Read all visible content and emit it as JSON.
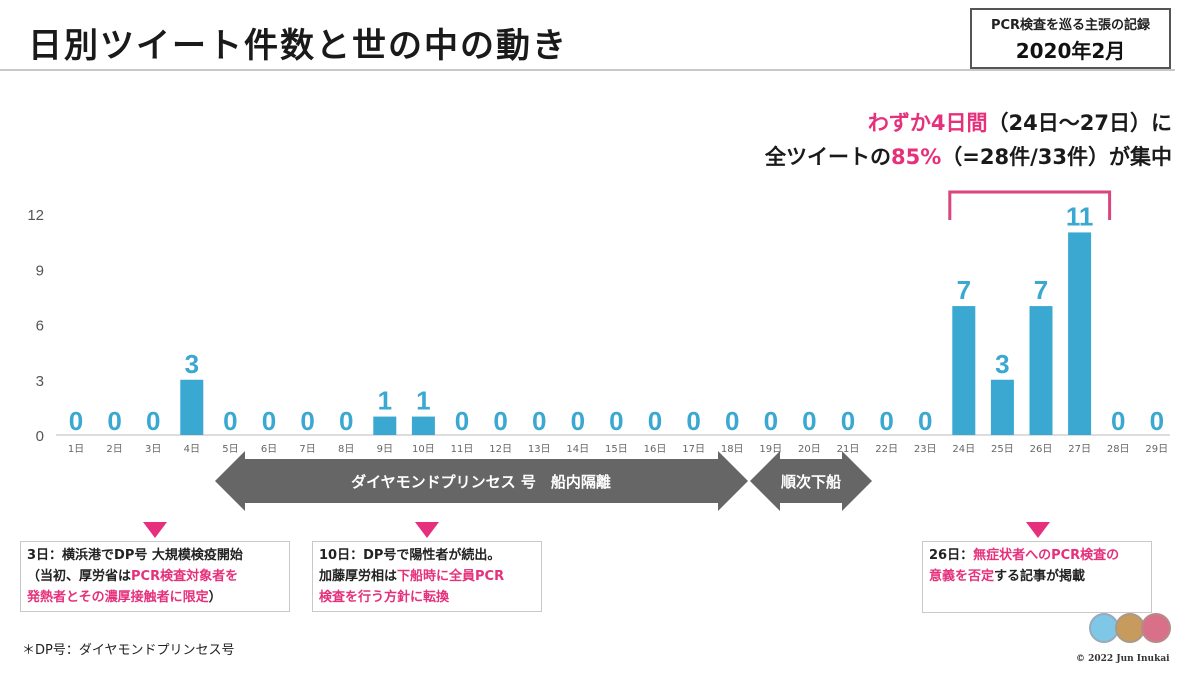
{
  "header": {
    "title": "日別ツイート件数と世の中の動き",
    "record_line1": "PCR検査を巡る主張の記録",
    "record_line2": "2020年2月"
  },
  "callout": {
    "line1_a": "わずか4日間",
    "line1_b": "（24日〜27日）に",
    "line2_a": "全ツイートの",
    "line2_b": "85%",
    "line2_c": "（=28件/33件）が集中"
  },
  "chart_data": {
    "type": "bar",
    "categories": [
      "1日",
      "2日",
      "3日",
      "4日",
      "5日",
      "6日",
      "7日",
      "8日",
      "9日",
      "10日",
      "11日",
      "12日",
      "13日",
      "14日",
      "15日",
      "16日",
      "17日",
      "18日",
      "19日",
      "20日",
      "21日",
      "22日",
      "23日",
      "24日",
      "25日",
      "26日",
      "27日",
      "28日",
      "29日"
    ],
    "values": [
      0,
      0,
      0,
      3,
      0,
      0,
      0,
      0,
      1,
      1,
      0,
      0,
      0,
      0,
      0,
      0,
      0,
      0,
      0,
      0,
      0,
      0,
      0,
      7,
      3,
      7,
      11,
      0,
      0
    ],
    "yticks": [
      0,
      3,
      6,
      9,
      12
    ],
    "ylim": [
      0,
      12
    ],
    "colors": {
      "bar": "#3aa8d0",
      "label": "#3aa8d0",
      "bracket": "#d9457f",
      "arrow": "#666666"
    }
  },
  "arrows": {
    "isolation": "ダイヤモンドプリンセス 号　船内隔離",
    "disembark": "順次下船"
  },
  "notes": {
    "n1": {
      "l1": "3日：横浜港でDP号 大規模検疫開始",
      "l2a": "（当初、厚労省は",
      "l2b": "PCR検査対象者を",
      "l3": "発熱者とその濃厚接触者に限定",
      "l3b": "）"
    },
    "n2": {
      "l1": "10日：DP号で陽性者が続出。",
      "l2a": "加藤厚労相は",
      "l2b": "下船時に全員PCR",
      "l3": "検査を行う方針に転換"
    },
    "n3": {
      "l1a": "26日：",
      "l1b": "無症状者へのPCR検査の",
      "l2a": "意義を否定",
      "l2b": "する記事が掲載"
    }
  },
  "footnote": "＊DP号：ダイヤモンドプリンセス号",
  "copyright": "© 2022 Jun Inukai"
}
